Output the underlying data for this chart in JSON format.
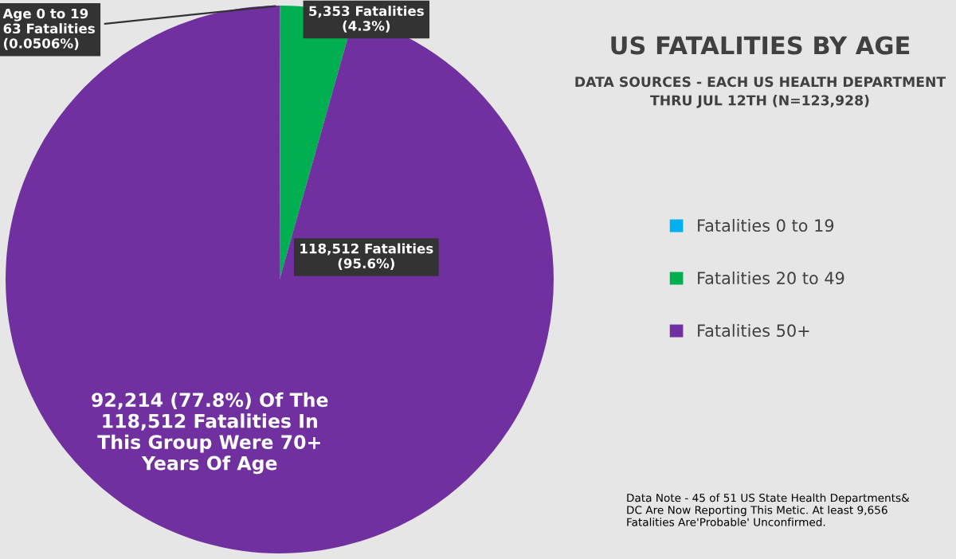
{
  "chart_data": {
    "type": "pie",
    "title": "US FATALITIES BY AGE",
    "subtitle": "DATA SOURCES - EACH US HEALTH DEPARTMENT\nTHRU JUL 12TH (N=123,928)",
    "categories": [
      "Fatalities 0 to 19",
      "Fatalities 20 to 49",
      "Fatalities 50+"
    ],
    "values": [
      63,
      5353,
      118512
    ],
    "colors": [
      "#00b0f0",
      "#00b050",
      "#7030a0"
    ],
    "value_labels": [
      "Age 0 to 19\n63 Fatalities\n(0.0506%)",
      "5,353 Fatalities\n(4.3%)",
      "118,512 Fatalities\n(95.6%)"
    ],
    "annotations": [
      "92,214 (77.8%) Of The\n118,512 Fatalities In\nThis Group Were 70+\nYears Of Age",
      "Data Note - 45 of 51 US State Health Departments&\nDC Are Now Reporting This Metic. At least 9,656\nFatalities Are'Probable' Unconfirmed."
    ],
    "legend": "right"
  }
}
